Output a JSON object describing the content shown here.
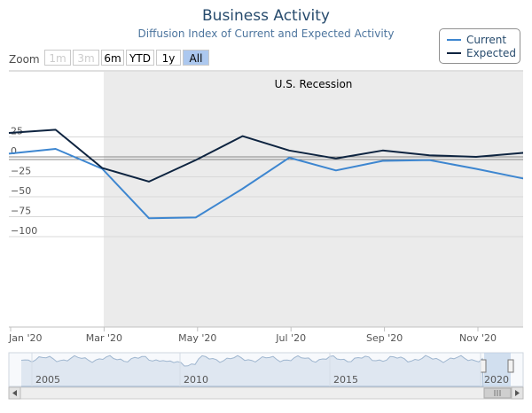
{
  "title": "Business Activity",
  "subtitle": "Diffusion Index of Current and Expected Activity",
  "zoom": {
    "label": "Zoom",
    "buttons": [
      {
        "label": "1m",
        "state": "disabled"
      },
      {
        "label": "3m",
        "state": "disabled"
      },
      {
        "label": "6m",
        "state": "normal"
      },
      {
        "label": "YTD",
        "state": "normal"
      },
      {
        "label": "1y",
        "state": "normal"
      },
      {
        "label": "All",
        "state": "active"
      }
    ]
  },
  "colors": {
    "current": "#3d86d0",
    "expected": "#0e2440",
    "band": "#ebebeb",
    "grid": "#d8d8d8"
  },
  "chart_data": {
    "type": "line",
    "x": [
      "Jan '20",
      "Feb '20",
      "Mar '20",
      "Apr '20",
      "May '20",
      "Jun '20",
      "Jul '20",
      "Aug '20",
      "Sep '20",
      "Oct '20",
      "Nov '20",
      "Dec '20"
    ],
    "x_tick_labels": [
      "Jan '20",
      "Mar '20",
      "May '20",
      "Jul '20",
      "Sep '20",
      "Nov '20"
    ],
    "y_ticks": [
      25,
      0,
      -25,
      -50,
      -75,
      -100
    ],
    "ylim": [
      -100,
      35
    ],
    "series": [
      {
        "name": "Current",
        "values": [
          4,
          10,
          -15,
          -77,
          -76,
          -40,
          -1,
          -17,
          -5,
          -4,
          -15,
          -27
        ]
      },
      {
        "name": "Expected",
        "values": [
          30,
          34,
          -14,
          -31,
          -4,
          26,
          8,
          -2,
          8,
          2,
          0,
          5
        ]
      }
    ],
    "band": {
      "label": "U.S. Recession",
      "from": "Mar '20",
      "to": "Dec '20"
    },
    "legend": "top-right",
    "navigator": {
      "labels": [
        "2005",
        "2010",
        "2015",
        "2020"
      ]
    }
  }
}
